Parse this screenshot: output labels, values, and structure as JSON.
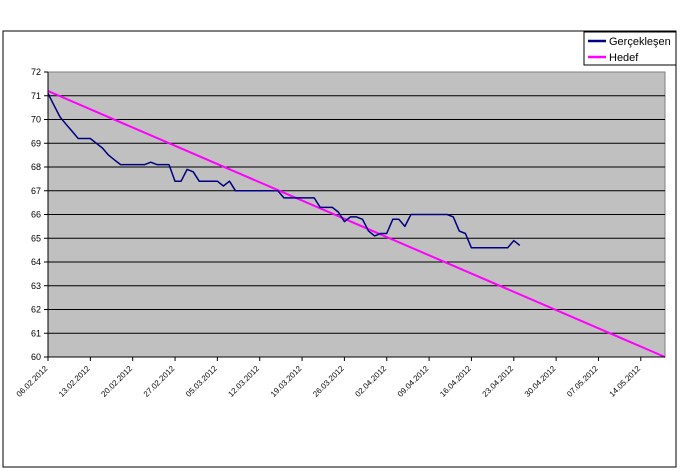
{
  "chart_data": {
    "type": "line",
    "title": "",
    "xlabel": "",
    "ylabel": "",
    "ylim": [
      60,
      72
    ],
    "xlim": [
      "06.02.2012",
      "18.05.2012"
    ],
    "yticks": [
      60,
      61,
      62,
      63,
      64,
      65,
      66,
      67,
      68,
      69,
      70,
      71,
      72
    ],
    "xticks": [
      "06.02.2012",
      "13.02.2012",
      "20.02.2012",
      "27.02.2012",
      "05.03.2012",
      "12.03.2012",
      "19.03.2012",
      "26.03.2012",
      "02.04.2012",
      "09.04.2012",
      "16.04.2012",
      "23.04.2012",
      "30.04.2012",
      "07.05.2012",
      "14.05.2012"
    ],
    "grid": "horizontal",
    "plot_background": "#c0c0c0",
    "legend_position": "top-right",
    "series": [
      {
        "name": "Gerçekleşen",
        "color": "#000080",
        "points": [
          [
            "06.02.2012",
            71.1
          ],
          [
            "07.02.2012",
            70.6
          ],
          [
            "08.02.2012",
            70.1
          ],
          [
            "09.02.2012",
            69.8
          ],
          [
            "10.02.2012",
            69.5
          ],
          [
            "11.02.2012",
            69.2
          ],
          [
            "12.02.2012",
            69.2
          ],
          [
            "13.02.2012",
            69.2
          ],
          [
            "14.02.2012",
            69.0
          ],
          [
            "15.02.2012",
            68.8
          ],
          [
            "16.02.2012",
            68.5
          ],
          [
            "17.02.2012",
            68.3
          ],
          [
            "18.02.2012",
            68.1
          ],
          [
            "19.02.2012",
            68.1
          ],
          [
            "20.02.2012",
            68.1
          ],
          [
            "21.02.2012",
            68.1
          ],
          [
            "22.02.2012",
            68.1
          ],
          [
            "23.02.2012",
            68.2
          ],
          [
            "24.02.2012",
            68.1
          ],
          [
            "25.02.2012",
            68.1
          ],
          [
            "26.02.2012",
            68.1
          ],
          [
            "27.02.2012",
            67.4
          ],
          [
            "28.02.2012",
            67.4
          ],
          [
            "29.02.2012",
            67.9
          ],
          [
            "01.03.2012",
            67.8
          ],
          [
            "02.03.2012",
            67.4
          ],
          [
            "03.03.2012",
            67.4
          ],
          [
            "04.03.2012",
            67.4
          ],
          [
            "05.03.2012",
            67.4
          ],
          [
            "06.03.2012",
            67.2
          ],
          [
            "07.03.2012",
            67.4
          ],
          [
            "08.03.2012",
            67.0
          ],
          [
            "09.03.2012",
            67.0
          ],
          [
            "10.03.2012",
            67.0
          ],
          [
            "11.03.2012",
            67.0
          ],
          [
            "12.03.2012",
            67.0
          ],
          [
            "13.03.2012",
            67.0
          ],
          [
            "14.03.2012",
            67.0
          ],
          [
            "15.03.2012",
            67.0
          ],
          [
            "16.03.2012",
            66.7
          ],
          [
            "17.03.2012",
            66.7
          ],
          [
            "18.03.2012",
            66.7
          ],
          [
            "19.03.2012",
            66.7
          ],
          [
            "20.03.2012",
            66.7
          ],
          [
            "21.03.2012",
            66.7
          ],
          [
            "22.03.2012",
            66.3
          ],
          [
            "23.03.2012",
            66.3
          ],
          [
            "24.03.2012",
            66.3
          ],
          [
            "25.03.2012",
            66.1
          ],
          [
            "26.03.2012",
            65.7
          ],
          [
            "27.03.2012",
            65.9
          ],
          [
            "28.03.2012",
            65.9
          ],
          [
            "29.03.2012",
            65.8
          ],
          [
            "30.03.2012",
            65.3
          ],
          [
            "31.03.2012",
            65.1
          ],
          [
            "01.04.2012",
            65.2
          ],
          [
            "02.04.2012",
            65.2
          ],
          [
            "03.04.2012",
            65.8
          ],
          [
            "04.04.2012",
            65.8
          ],
          [
            "05.04.2012",
            65.5
          ],
          [
            "06.04.2012",
            66.0
          ],
          [
            "07.04.2012",
            66.0
          ],
          [
            "08.04.2012",
            66.0
          ],
          [
            "09.04.2012",
            66.0
          ],
          [
            "10.04.2012",
            66.0
          ],
          [
            "11.04.2012",
            66.0
          ],
          [
            "12.04.2012",
            66.0
          ],
          [
            "13.04.2012",
            65.9
          ],
          [
            "14.04.2012",
            65.3
          ],
          [
            "15.04.2012",
            65.2
          ],
          [
            "16.04.2012",
            64.6
          ],
          [
            "17.04.2012",
            64.6
          ],
          [
            "18.04.2012",
            64.6
          ],
          [
            "19.04.2012",
            64.6
          ],
          [
            "20.04.2012",
            64.6
          ],
          [
            "21.04.2012",
            64.6
          ],
          [
            "22.04.2012",
            64.6
          ],
          [
            "23.04.2012",
            64.9
          ],
          [
            "24.04.2012",
            64.7
          ]
        ]
      },
      {
        "name": "Hedef",
        "color": "#ff00ff",
        "points": [
          [
            "06.02.2012",
            71.2
          ],
          [
            "18.05.2012",
            60.0
          ]
        ]
      }
    ]
  }
}
